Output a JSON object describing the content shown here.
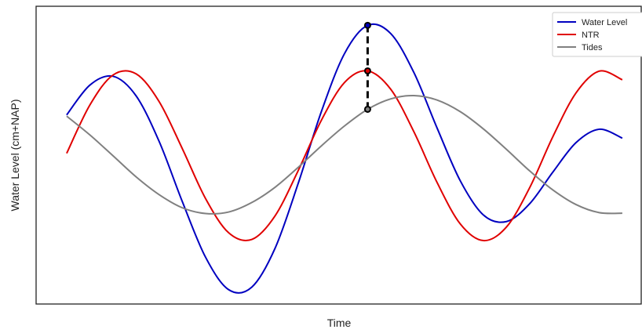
{
  "chart_data": {
    "type": "line",
    "xlabel": "Time",
    "ylabel": "Water Level (cm+NAP)",
    "x": [
      0,
      1,
      2,
      3,
      4,
      5,
      6,
      7,
      8,
      9,
      10,
      11,
      12,
      13,
      14,
      15,
      16,
      17,
      18,
      19,
      20,
      21,
      22,
      23,
      24
    ],
    "xlim": [
      -1.32,
      24.85
    ],
    "ylim": [
      0,
      100
    ],
    "highlight_x": 13,
    "legend": "upper right",
    "series": [
      {
        "name": "Water Level",
        "color": "#0000c0",
        "values": [
          63.5,
          73.5,
          76.5,
          69.9,
          54.5,
          34.3,
          15.7,
          4.8,
          5.7,
          18.7,
          40.5,
          64.6,
          84.1,
          93.6,
          90.8,
          77.7,
          59.1,
          41.4,
          29.9,
          27.7,
          33.7,
          44.3,
          54.2,
          58.7,
          55.7
        ]
      },
      {
        "name": "NTR",
        "color": "#e00000",
        "values": [
          50.6,
          66.8,
          76.9,
          77.3,
          67.9,
          52.1,
          35.4,
          23.9,
          21.7,
          29.6,
          44.8,
          61.7,
          74.4,
          78.3,
          72.1,
          57.8,
          40.8,
          26.9,
          21.3,
          25.9,
          39.1,
          56.2,
          70.9,
          78.2,
          75.3
        ]
      },
      {
        "name": "Tides",
        "color": "#808080",
        "values": [
          63.1,
          56.8,
          49.8,
          42.7,
          36.7,
          32.3,
          30.4,
          30.9,
          34.1,
          39.2,
          45.9,
          53.1,
          59.8,
          65.4,
          68.9,
          70.0,
          68.5,
          64.6,
          58.8,
          51.9,
          44.7,
          38.3,
          33.4,
          30.7,
          30.5
        ]
      }
    ]
  }
}
